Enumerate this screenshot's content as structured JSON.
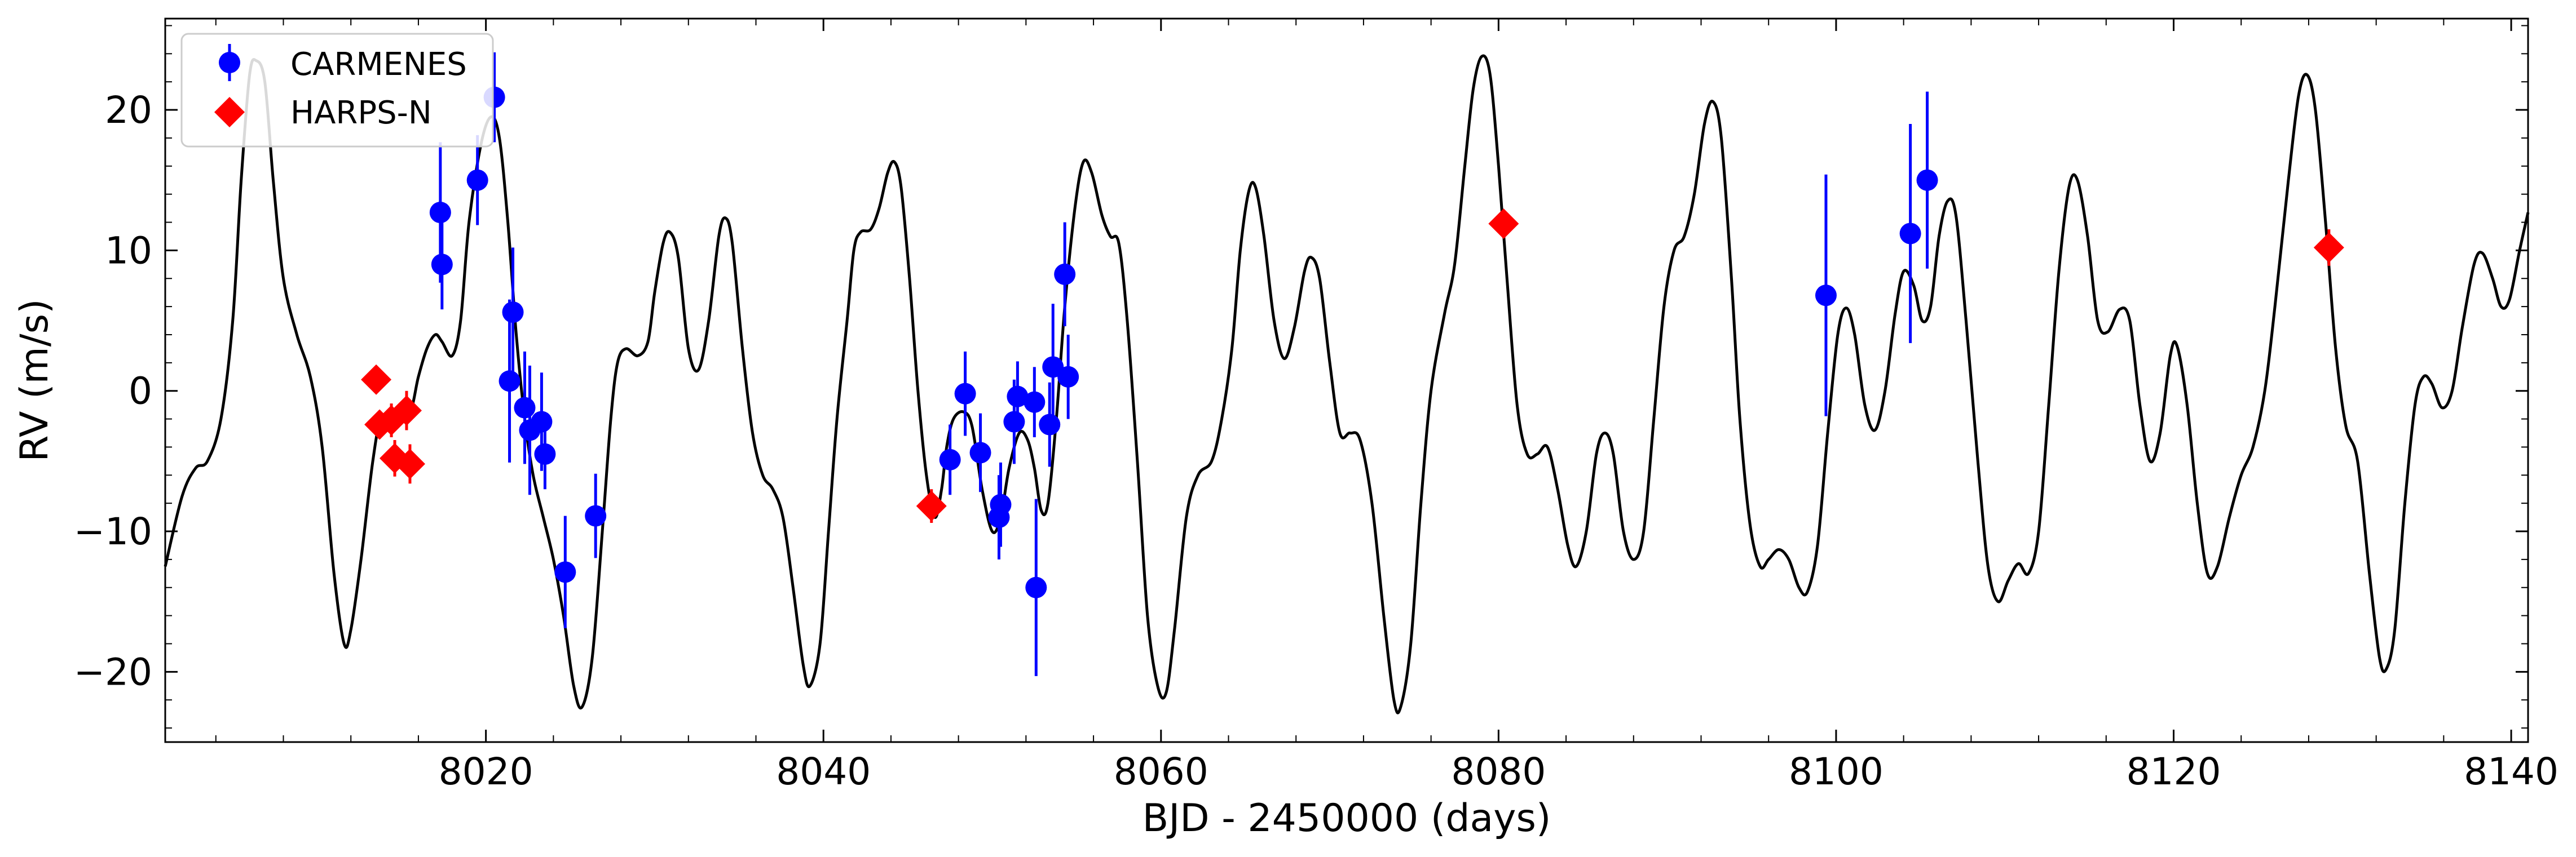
{
  "chart_data": {
    "type": "scatter",
    "title": "",
    "xlabel": "BJD - 2450000 (days)",
    "ylabel": "RV (m/s)",
    "xlim": [
      8001,
      8141
    ],
    "ylim": [
      -25,
      26.5
    ],
    "x_ticks": [
      8020,
      8040,
      8060,
      8080,
      8100,
      8120,
      8140
    ],
    "y_ticks": [
      -20,
      -10,
      0,
      10,
      20
    ],
    "grid": false,
    "legend_position": "top-left",
    "colors": {
      "carmenes": "#0000ff",
      "harps": "#ff0000",
      "model": "#000000"
    },
    "series": [
      {
        "name": "CARMENES",
        "marker": "circle",
        "color": "#0000ff",
        "points": [
          {
            "x": 8017.3,
            "y": 12.7,
            "err": 5.0
          },
          {
            "x": 8017.4,
            "y": 9.0,
            "err": 3.2
          },
          {
            "x": 8019.5,
            "y": 15.0,
            "err": 3.2
          },
          {
            "x": 8020.5,
            "y": 20.9,
            "err": 3.2
          },
          {
            "x": 8021.4,
            "y": 0.7,
            "err": 5.8
          },
          {
            "x": 8021.6,
            "y": 5.6,
            "err": 4.6
          },
          {
            "x": 8022.3,
            "y": -1.2,
            "err": 4.0
          },
          {
            "x": 8022.6,
            "y": -2.8,
            "err": 4.6
          },
          {
            "x": 8023.3,
            "y": -2.2,
            "err": 3.5
          },
          {
            "x": 8023.5,
            "y": -4.5,
            "err": 2.5
          },
          {
            "x": 8024.7,
            "y": -12.9,
            "err": 4.0
          },
          {
            "x": 8026.5,
            "y": -8.9,
            "err": 3.0
          },
          {
            "x": 8047.5,
            "y": -4.9,
            "err": 2.5
          },
          {
            "x": 8048.4,
            "y": -0.2,
            "err": 3.0
          },
          {
            "x": 8049.3,
            "y": -4.4,
            "err": 2.8
          },
          {
            "x": 8050.4,
            "y": -9.0,
            "err": 3.0
          },
          {
            "x": 8050.5,
            "y": -8.1,
            "err": 3.0
          },
          {
            "x": 8051.3,
            "y": -2.2,
            "err": 3.0
          },
          {
            "x": 8051.5,
            "y": -0.4,
            "err": 2.5
          },
          {
            "x": 8052.5,
            "y": -0.8,
            "err": 2.5
          },
          {
            "x": 8052.6,
            "y": -14.0,
            "err": 6.3
          },
          {
            "x": 8053.4,
            "y": -2.4,
            "err": 3.0
          },
          {
            "x": 8053.6,
            "y": 1.7,
            "err": 4.5
          },
          {
            "x": 8054.3,
            "y": 8.3,
            "err": 3.7
          },
          {
            "x": 8054.5,
            "y": 1.0,
            "err": 3.0
          },
          {
            "x": 8099.4,
            "y": 6.8,
            "err": 8.6
          },
          {
            "x": 8104.4,
            "y": 11.2,
            "err": 7.8
          },
          {
            "x": 8105.4,
            "y": 15.0,
            "err": 6.3
          }
        ]
      },
      {
        "name": "HARPS-N",
        "marker": "diamond",
        "color": "#ff0000",
        "points": [
          {
            "x": 8013.5,
            "y": 0.8,
            "err": 0.7
          },
          {
            "x": 8013.7,
            "y": -2.4,
            "err": 1.0
          },
          {
            "x": 8014.4,
            "y": -2.1,
            "err": 1.2
          },
          {
            "x": 8014.6,
            "y": -4.8,
            "err": 1.3
          },
          {
            "x": 8015.3,
            "y": -1.4,
            "err": 1.4
          },
          {
            "x": 8015.5,
            "y": -5.2,
            "err": 1.4
          },
          {
            "x": 8046.4,
            "y": -8.2,
            "err": 1.2
          },
          {
            "x": 8080.3,
            "y": 11.9,
            "err": 1.0
          },
          {
            "x": 8129.2,
            "y": 10.2,
            "err": 1.3
          }
        ]
      }
    ],
    "model_curve": {
      "color": "#000000",
      "points": [
        [
          8001.0,
          -12.5
        ],
        [
          8002.0,
          -7.5
        ],
        [
          8002.8,
          -5.5
        ],
        [
          8003.5,
          -5.0
        ],
        [
          8004.3,
          -2.0
        ],
        [
          8005.0,
          5.0
        ],
        [
          8005.5,
          15.0
        ],
        [
          8006.0,
          22.5
        ],
        [
          8006.4,
          23.5
        ],
        [
          8006.9,
          22.0
        ],
        [
          8007.4,
          15.0
        ],
        [
          8008.0,
          8.0
        ],
        [
          8008.8,
          4.0
        ],
        [
          8009.6,
          1.0
        ],
        [
          8010.3,
          -4.0
        ],
        [
          8011.0,
          -13.0
        ],
        [
          8011.6,
          -18.0
        ],
        [
          8012.0,
          -17.0
        ],
        [
          8012.6,
          -12.0
        ],
        [
          8013.3,
          -5.0
        ],
        [
          8013.8,
          -2.0
        ],
        [
          8014.6,
          -2.0
        ],
        [
          8015.5,
          -1.5
        ],
        [
          8016.0,
          1.0
        ],
        [
          8016.5,
          3.0
        ],
        [
          8017.0,
          4.0
        ],
        [
          8017.4,
          3.5
        ],
        [
          8018.0,
          2.5
        ],
        [
          8018.5,
          5.0
        ],
        [
          8019.0,
          12.0
        ],
        [
          8019.7,
          17.5
        ],
        [
          8020.3,
          19.5
        ],
        [
          8020.8,
          18.0
        ],
        [
          8021.3,
          12.0
        ],
        [
          8021.8,
          4.0
        ],
        [
          8022.3,
          -2.0
        ],
        [
          8022.8,
          -6.0
        ],
        [
          8023.4,
          -9.0
        ],
        [
          8024.0,
          -12.0
        ],
        [
          8024.6,
          -16.0
        ],
        [
          8025.2,
          -21.0
        ],
        [
          8025.7,
          -22.5
        ],
        [
          8026.3,
          -19.0
        ],
        [
          8026.9,
          -10.0
        ],
        [
          8027.4,
          -2.0
        ],
        [
          8027.8,
          2.0
        ],
        [
          8028.3,
          3.0
        ],
        [
          8029.0,
          2.5
        ],
        [
          8029.6,
          3.5
        ],
        [
          8030.0,
          7.0
        ],
        [
          8030.5,
          10.5
        ],
        [
          8030.9,
          11.3
        ],
        [
          8031.4,
          9.5
        ],
        [
          8032.0,
          3.0
        ],
        [
          8032.6,
          1.5
        ],
        [
          8033.2,
          5.0
        ],
        [
          8033.8,
          11.0
        ],
        [
          8034.2,
          12.3
        ],
        [
          8034.6,
          10.5
        ],
        [
          8035.2,
          3.0
        ],
        [
          8035.8,
          -3.0
        ],
        [
          8036.4,
          -6.0
        ],
        [
          8037.0,
          -7.0
        ],
        [
          8037.6,
          -9.0
        ],
        [
          8038.2,
          -14.0
        ],
        [
          8038.8,
          -19.5
        ],
        [
          8039.2,
          -21.0
        ],
        [
          8039.8,
          -18.0
        ],
        [
          8040.3,
          -10.0
        ],
        [
          8040.8,
          -2.0
        ],
        [
          8041.4,
          5.0
        ],
        [
          8041.8,
          10.0
        ],
        [
          8042.2,
          11.3
        ],
        [
          8042.8,
          11.5
        ],
        [
          8043.3,
          13.0
        ],
        [
          8043.8,
          15.5
        ],
        [
          8044.2,
          16.3
        ],
        [
          8044.6,
          14.5
        ],
        [
          8045.1,
          8.0
        ],
        [
          8045.6,
          0.0
        ],
        [
          8046.1,
          -6.0
        ],
        [
          8046.6,
          -9.0
        ],
        [
          8047.0,
          -7.0
        ],
        [
          8047.3,
          -4.0
        ],
        [
          8047.7,
          -2.0
        ],
        [
          8048.3,
          -1.5
        ],
        [
          8048.8,
          -2.5
        ],
        [
          8049.4,
          -7.0
        ],
        [
          8050.0,
          -10.0
        ],
        [
          8050.5,
          -9.0
        ],
        [
          8051.0,
          -5.5
        ],
        [
          8051.6,
          -3.0
        ],
        [
          8052.1,
          -3.5
        ],
        [
          8052.5,
          -5.5
        ],
        [
          8052.9,
          -8.5
        ],
        [
          8053.3,
          -8.0
        ],
        [
          8053.8,
          -2.0
        ],
        [
          8054.3,
          6.0
        ],
        [
          8054.9,
          13.0
        ],
        [
          8055.4,
          16.3
        ],
        [
          8055.9,
          15.5
        ],
        [
          8056.5,
          12.5
        ],
        [
          8057.0,
          11.0
        ],
        [
          8057.5,
          10.5
        ],
        [
          8058.0,
          5.0
        ],
        [
          8058.6,
          -5.0
        ],
        [
          8059.2,
          -16.0
        ],
        [
          8059.8,
          -21.0
        ],
        [
          8060.3,
          -21.5
        ],
        [
          8060.8,
          -17.0
        ],
        [
          8061.5,
          -9.0
        ],
        [
          8062.2,
          -6.0
        ],
        [
          8063.0,
          -5.0
        ],
        [
          8063.6,
          -2.0
        ],
        [
          8064.2,
          3.0
        ],
        [
          8064.7,
          10.0
        ],
        [
          8065.2,
          14.2
        ],
        [
          8065.6,
          14.5
        ],
        [
          8066.1,
          11.0
        ],
        [
          8066.7,
          5.0
        ],
        [
          8067.3,
          2.3
        ],
        [
          8067.9,
          4.5
        ],
        [
          8068.5,
          8.5
        ],
        [
          8068.9,
          9.5
        ],
        [
          8069.4,
          8.0
        ],
        [
          8070.0,
          2.0
        ],
        [
          8070.6,
          -3.0
        ],
        [
          8071.2,
          -3.0
        ],
        [
          8071.8,
          -3.5
        ],
        [
          8072.5,
          -8.0
        ],
        [
          8073.2,
          -16.0
        ],
        [
          8073.8,
          -22.0
        ],
        [
          8074.2,
          -22.5
        ],
        [
          8074.8,
          -18.0
        ],
        [
          8075.4,
          -8.0
        ],
        [
          8076.0,
          0.0
        ],
        [
          8076.8,
          5.5
        ],
        [
          8077.4,
          9.0
        ],
        [
          8078.0,
          16.0
        ],
        [
          8078.5,
          21.5
        ],
        [
          8079.0,
          23.8
        ],
        [
          8079.5,
          22.5
        ],
        [
          8080.0,
          16.0
        ],
        [
          8080.5,
          8.0
        ],
        [
          8081.1,
          -1.0
        ],
        [
          8081.7,
          -4.5
        ],
        [
          8082.3,
          -4.5
        ],
        [
          8082.9,
          -4.0
        ],
        [
          8083.5,
          -7.0
        ],
        [
          8084.1,
          -11.0
        ],
        [
          8084.6,
          -12.5
        ],
        [
          8085.2,
          -10.0
        ],
        [
          8085.8,
          -4.5
        ],
        [
          8086.3,
          -3.0
        ],
        [
          8086.8,
          -4.5
        ],
        [
          8087.4,
          -10.0
        ],
        [
          8088.0,
          -12.0
        ],
        [
          8088.6,
          -10.0
        ],
        [
          8089.2,
          -2.0
        ],
        [
          8089.8,
          6.0
        ],
        [
          8090.4,
          10.0
        ],
        [
          8091.0,
          11.0
        ],
        [
          8091.6,
          14.0
        ],
        [
          8092.2,
          19.0
        ],
        [
          8092.7,
          20.6
        ],
        [
          8093.2,
          18.0
        ],
        [
          8093.8,
          8.0
        ],
        [
          8094.3,
          -2.0
        ],
        [
          8094.9,
          -9.5
        ],
        [
          8095.5,
          -12.5
        ],
        [
          8096.0,
          -12.0
        ],
        [
          8096.6,
          -11.3
        ],
        [
          8097.2,
          -12.0
        ],
        [
          8097.8,
          -14.0
        ],
        [
          8098.3,
          -14.3
        ],
        [
          8098.9,
          -11.0
        ],
        [
          8099.5,
          -3.0
        ],
        [
          8100.1,
          4.0
        ],
        [
          8100.6,
          5.9
        ],
        [
          8101.1,
          4.0
        ],
        [
          8101.7,
          -1.0
        ],
        [
          8102.3,
          -2.8
        ],
        [
          8102.9,
          0.0
        ],
        [
          8103.5,
          5.5
        ],
        [
          8104.0,
          8.5
        ],
        [
          8104.6,
          7.5
        ],
        [
          8105.1,
          5.0
        ],
        [
          8105.6,
          6.0
        ],
        [
          8106.1,
          11.0
        ],
        [
          8106.6,
          13.5
        ],
        [
          8107.1,
          12.5
        ],
        [
          8107.7,
          5.0
        ],
        [
          8108.4,
          -5.0
        ],
        [
          8109.0,
          -12.5
        ],
        [
          8109.6,
          -15.0
        ],
        [
          8110.2,
          -13.5
        ],
        [
          8110.8,
          -12.3
        ],
        [
          8111.4,
          -13.0
        ],
        [
          8112.0,
          -10.0
        ],
        [
          8112.6,
          -1.0
        ],
        [
          8113.2,
          8.5
        ],
        [
          8113.8,
          14.5
        ],
        [
          8114.3,
          15.0
        ],
        [
          8114.9,
          11.0
        ],
        [
          8115.5,
          5.0
        ],
        [
          8116.1,
          4.2
        ],
        [
          8116.8,
          5.8
        ],
        [
          8117.4,
          5.0
        ],
        [
          8118.0,
          -1.0
        ],
        [
          8118.6,
          -5.0
        ],
        [
          8119.2,
          -3.0
        ],
        [
          8119.8,
          2.5
        ],
        [
          8120.2,
          3.2
        ],
        [
          8120.8,
          -1.0
        ],
        [
          8121.4,
          -8.0
        ],
        [
          8122.0,
          -13.0
        ],
        [
          8122.6,
          -12.5
        ],
        [
          8123.3,
          -9.0
        ],
        [
          8124.0,
          -6.0
        ],
        [
          8124.7,
          -4.0
        ],
        [
          8125.4,
          0.0
        ],
        [
          8126.0,
          6.0
        ],
        [
          8126.8,
          15.0
        ],
        [
          8127.4,
          21.0
        ],
        [
          8127.9,
          22.5
        ],
        [
          8128.4,
          20.0
        ],
        [
          8129.0,
          12.0
        ],
        [
          8129.6,
          3.0
        ],
        [
          8130.2,
          -2.5
        ],
        [
          8130.9,
          -5.0
        ],
        [
          8131.6,
          -13.0
        ],
        [
          8132.2,
          -19.0
        ],
        [
          8132.6,
          -19.8
        ],
        [
          8133.1,
          -17.0
        ],
        [
          8133.7,
          -8.0
        ],
        [
          8134.3,
          -1.0
        ],
        [
          8134.8,
          1.0
        ],
        [
          8135.3,
          0.5
        ],
        [
          8135.9,
          -1.2
        ],
        [
          8136.5,
          0.0
        ],
        [
          8137.1,
          4.5
        ],
        [
          8137.8,
          9.0
        ],
        [
          8138.3,
          9.8
        ],
        [
          8138.9,
          8.0
        ],
        [
          8139.4,
          6.0
        ],
        [
          8139.9,
          6.5
        ],
        [
          8140.5,
          10.0
        ],
        [
          8141.0,
          12.7
        ]
      ]
    }
  }
}
